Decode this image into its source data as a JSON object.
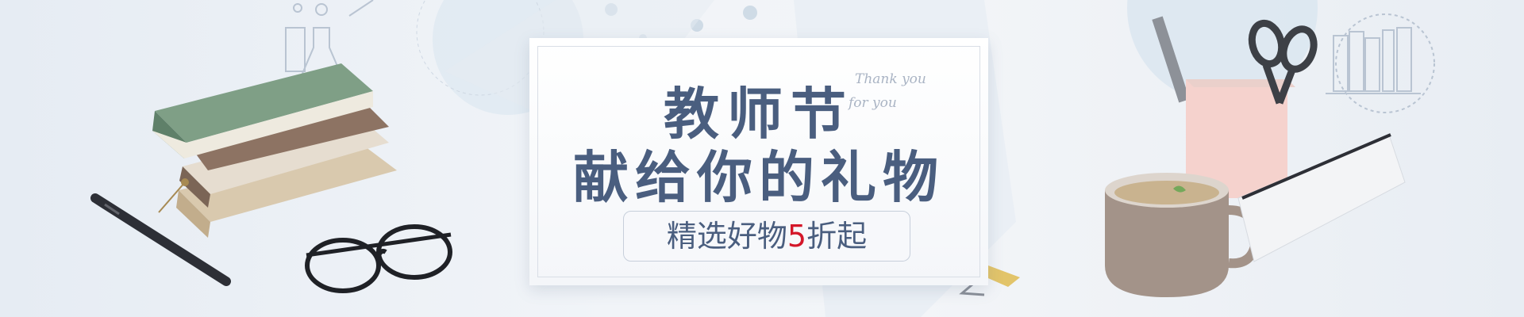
{
  "banner": {
    "headline_line1": "教师节",
    "headline_line2": "献给你的礼物",
    "thank_you_line1": "Thank you",
    "thank_you_line2": "for you",
    "promo_prefix": "精选好物",
    "promo_number": "5",
    "promo_suffix": "折起"
  },
  "colors": {
    "headline": "#4a5e7f",
    "promo_number": "#d4172a",
    "background": "#eef2f6"
  },
  "icons": [
    "books-icon",
    "pen-icon",
    "glasses-icon",
    "flask-icon",
    "binder-clip-icon",
    "scissors-icon",
    "pencil-cup-icon",
    "mug-icon",
    "pencil-case-icon",
    "bookshelf-icon"
  ]
}
